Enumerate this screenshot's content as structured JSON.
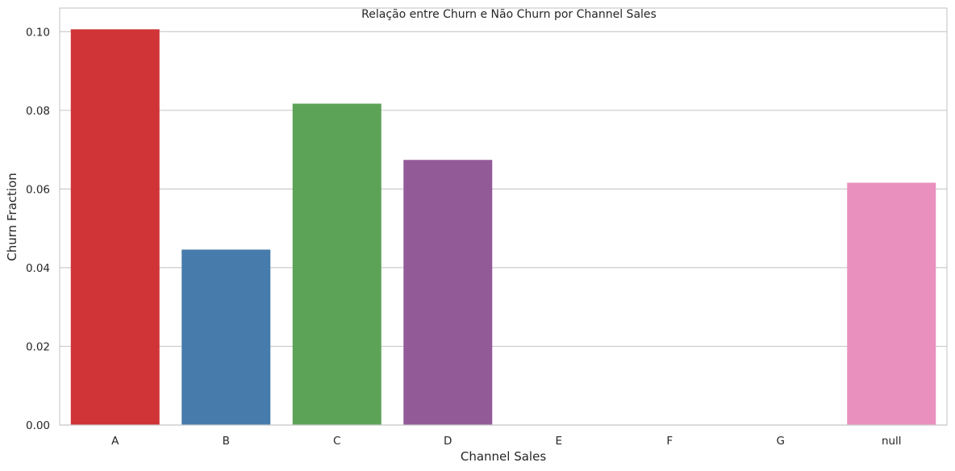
{
  "chart_data": {
    "type": "bar",
    "title": "Relação entre Churn e Não Churn por Channel Sales",
    "xlabel": "Channel Sales",
    "ylabel": "Churn Fraction",
    "categories": [
      "A",
      "B",
      "C",
      "D",
      "E",
      "F",
      "G",
      "null"
    ],
    "values": [
      0.1006,
      0.0446,
      0.0817,
      0.0674,
      0.0,
      0.0,
      0.0,
      0.0616
    ],
    "ylim": [
      0,
      0.106
    ],
    "yticks": [
      0.0,
      0.02,
      0.04,
      0.06,
      0.08,
      0.1
    ],
    "ytick_labels": [
      "0.00",
      "0.02",
      "0.04",
      "0.06",
      "0.08",
      "0.10"
    ],
    "grid": "horizontal",
    "colors": [
      "#d03437",
      "#477bab",
      "#5ca358",
      "#925b98",
      "#f07f2b",
      "#ffff33",
      "#a65628",
      "#e990bf"
    ]
  }
}
